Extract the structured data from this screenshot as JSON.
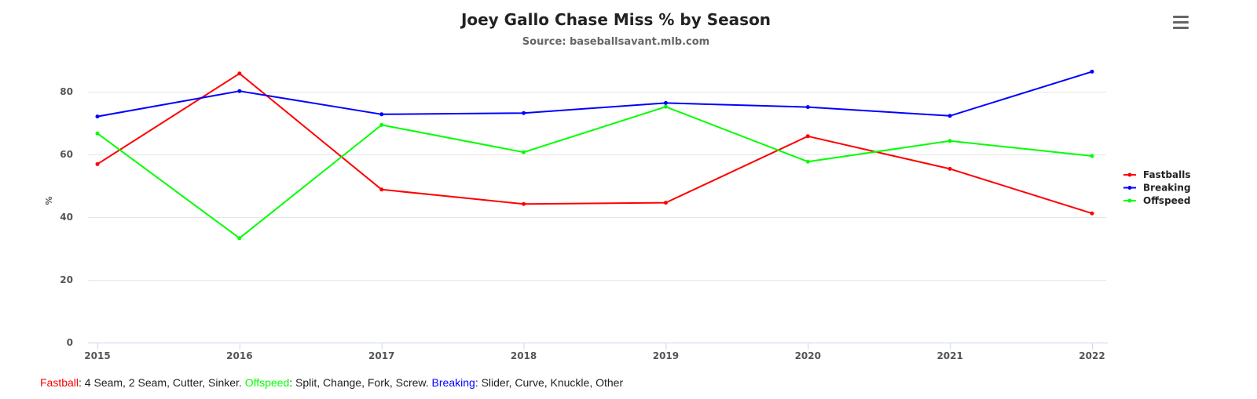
{
  "colors": {
    "fastball": "#ff0000",
    "breaking": "#0000ff",
    "offspeed": "#00ff00"
  },
  "menu": {
    "icon": "hamburger-menu-icon"
  },
  "footnote": {
    "fastball_label": "Fastball",
    "fastball_text": ": 4 Seam, 2 Seam, Cutter, Sinker. ",
    "offspeed_label": "Offspeed",
    "offspeed_text": ": Split, Change, Fork, Screw. ",
    "breaking_label": "Breaking",
    "breaking_text": ": Slider, Curve, Knuckle, Other"
  },
  "chart_data": {
    "type": "line",
    "title": "Joey Gallo Chase Miss % by Season",
    "subtitle": "Source: baseballsavant.mlb.com",
    "xlabel": "",
    "ylabel": "%",
    "categories": [
      "2015",
      "2016",
      "2017",
      "2018",
      "2019",
      "2020",
      "2021",
      "2022"
    ],
    "ylim": [
      0,
      90
    ],
    "yticks": [
      0,
      20,
      40,
      60,
      80
    ],
    "grid": true,
    "legend_position": "right",
    "series": [
      {
        "name": "Fastballs",
        "color": "#ff0000",
        "values": [
          56.9,
          85.8,
          48.8,
          44.2,
          44.6,
          65.8,
          55.4,
          41.2
        ]
      },
      {
        "name": "Breaking",
        "color": "#0000ff",
        "values": [
          72.1,
          80.2,
          72.8,
          73.2,
          76.4,
          75.1,
          72.3,
          86.4
        ]
      },
      {
        "name": "Offspeed",
        "color": "#00ff00",
        "values": [
          66.7,
          33.3,
          69.4,
          60.7,
          75.2,
          57.7,
          64.3,
          59.5
        ]
      }
    ]
  }
}
